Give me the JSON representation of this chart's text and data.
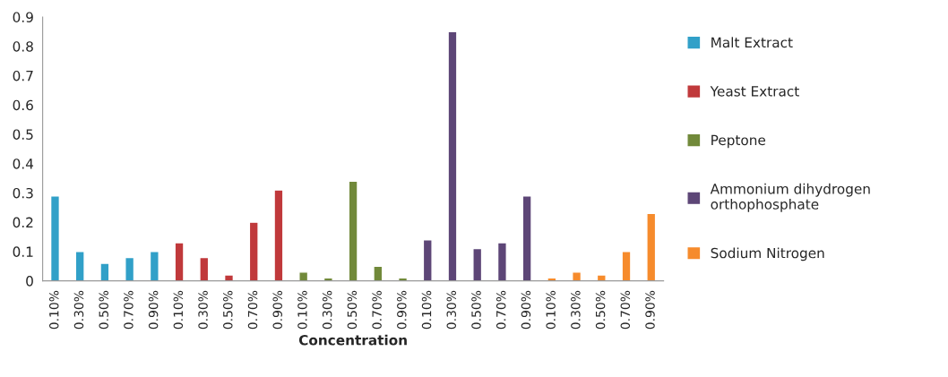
{
  "chart_data": {
    "type": "bar",
    "xlabel": "Concentration",
    "categories": [
      "0.10%",
      "0.30%",
      "0.50%",
      "0.70%",
      "0.90%",
      "0.10%",
      "0.30%",
      "0.50%",
      "0.70%",
      "0.90%",
      "0.10%",
      "0.30%",
      "0.50%",
      "0.70%",
      "0.90%",
      "0.10%",
      "0.30%",
      "0.50%",
      "0.70%",
      "0.90%",
      "0.10%",
      "0.30%",
      "0.50%",
      "0.70%",
      "0.90%"
    ],
    "series": [
      {
        "name": "Malt Extract",
        "color": "#31a0c8",
        "values": [
          0.29,
          0.1,
          0.06,
          0.08,
          0.1,
          null,
          null,
          null,
          null,
          null,
          null,
          null,
          null,
          null,
          null,
          null,
          null,
          null,
          null,
          null,
          null,
          null,
          null,
          null,
          null
        ]
      },
      {
        "name": "Yeast Extract",
        "color": "#c0393b",
        "values": [
          null,
          null,
          null,
          null,
          null,
          0.13,
          0.08,
          0.02,
          0.2,
          0.31,
          null,
          null,
          null,
          null,
          null,
          null,
          null,
          null,
          null,
          null,
          null,
          null,
          null,
          null,
          null
        ]
      },
      {
        "name": "Peptone",
        "color": "#71893a",
        "values": [
          null,
          null,
          null,
          null,
          null,
          null,
          null,
          null,
          null,
          null,
          0.03,
          0.01,
          0.34,
          0.05,
          0.01,
          null,
          null,
          null,
          null,
          null,
          null,
          null,
          null,
          null,
          null
        ]
      },
      {
        "name": "Ammonium dihydrogen\northophosphate",
        "color": "#5d4677",
        "values": [
          null,
          null,
          null,
          null,
          null,
          null,
          null,
          null,
          null,
          null,
          null,
          null,
          null,
          null,
          null,
          0.14,
          0.85,
          0.11,
          0.13,
          0.29,
          null,
          null,
          null,
          null,
          null
        ]
      },
      {
        "name": "Sodium Nitrogen",
        "color": "#f68b2c",
        "values": [
          null,
          null,
          null,
          null,
          null,
          null,
          null,
          null,
          null,
          null,
          null,
          null,
          null,
          null,
          null,
          null,
          null,
          null,
          null,
          null,
          0.01,
          0.03,
          0.02,
          0.1,
          0.23
        ]
      }
    ],
    "ylim": [
      0,
      0.9
    ],
    "yticks": [
      0,
      0.1,
      0.2,
      0.3,
      0.4,
      0.5,
      0.6,
      0.7,
      0.8,
      0.9
    ],
    "grid": false,
    "legend": "right"
  }
}
